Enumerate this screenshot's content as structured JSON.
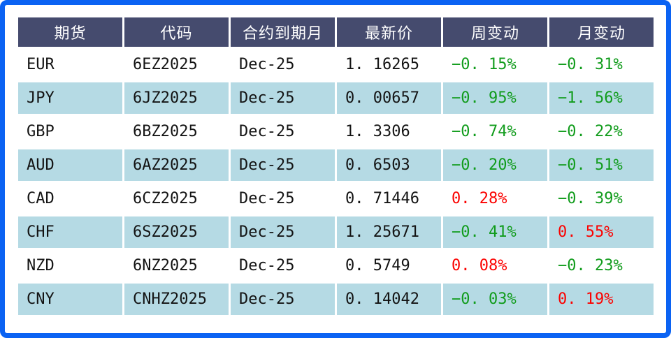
{
  "colors": {
    "frame_border": "#0b63f3",
    "header_bg": "#454b6e",
    "header_text": "#ffffff",
    "row_bg": "#ffffff",
    "row_alt_bg": "#b5dae4",
    "up_color": "#fb0200",
    "down_color": "#119c1c",
    "text_color": "#141414"
  },
  "table": {
    "columns": [
      "期货",
      "代码",
      "合约到期月",
      "最新价",
      "周变动",
      "月变动"
    ],
    "rows": [
      {
        "futures": "EUR",
        "code": "6EZ2025",
        "expiry": "Dec-25",
        "last": "1. 16265",
        "week_change": "−0. 15%",
        "week_dir": "down",
        "month_change": "−0. 31%",
        "month_dir": "down"
      },
      {
        "futures": "JPY",
        "code": "6JZ2025",
        "expiry": "Dec-25",
        "last": "0. 00657",
        "week_change": "−0. 95%",
        "week_dir": "down",
        "month_change": "−1. 56%",
        "month_dir": "down"
      },
      {
        "futures": "GBP",
        "code": "6BZ2025",
        "expiry": "Dec-25",
        "last": "1. 3306",
        "week_change": "−0. 74%",
        "week_dir": "down",
        "month_change": "−0. 22%",
        "month_dir": "down"
      },
      {
        "futures": "AUD",
        "code": "6AZ2025",
        "expiry": "Dec-25",
        "last": "0. 6503",
        "week_change": "−0. 20%",
        "week_dir": "down",
        "month_change": "−0. 51%",
        "month_dir": "down"
      },
      {
        "futures": "CAD",
        "code": "6CZ2025",
        "expiry": "Dec-25",
        "last": "0. 71446",
        "week_change": "0. 28%",
        "week_dir": "up",
        "month_change": "−0. 39%",
        "month_dir": "down"
      },
      {
        "futures": "CHF",
        "code": "6SZ2025",
        "expiry": "Dec-25",
        "last": "1. 25671",
        "week_change": "−0. 41%",
        "week_dir": "down",
        "month_change": "0. 55%",
        "month_dir": "up"
      },
      {
        "futures": "NZD",
        "code": "6NZ2025",
        "expiry": "Dec-25",
        "last": "0. 5749",
        "week_change": "0. 08%",
        "week_dir": "up",
        "month_change": "−0. 23%",
        "month_dir": "down"
      },
      {
        "futures": "CNY",
        "code": "CNHZ2025",
        "expiry": "Dec-25",
        "last": "0. 14042",
        "week_change": "−0. 03%",
        "week_dir": "down",
        "month_change": "0. 19%",
        "month_dir": "up"
      }
    ]
  },
  "chart_data": {
    "type": "table",
    "title": "",
    "columns": [
      "期货",
      "代码",
      "合约到期月",
      "最新价",
      "周变动(%)",
      "月变动(%)"
    ],
    "rows": [
      [
        "EUR",
        "6EZ2025",
        "Dec-25",
        1.16265,
        -0.15,
        -0.31
      ],
      [
        "JPY",
        "6JZ2025",
        "Dec-25",
        0.00657,
        -0.95,
        -1.56
      ],
      [
        "GBP",
        "6BZ2025",
        "Dec-25",
        1.3306,
        -0.74,
        -0.22
      ],
      [
        "AUD",
        "6AZ2025",
        "Dec-25",
        0.6503,
        -0.2,
        -0.51
      ],
      [
        "CAD",
        "6CZ2025",
        "Dec-25",
        0.71446,
        0.28,
        -0.39
      ],
      [
        "CHF",
        "6SZ2025",
        "Dec-25",
        1.25671,
        -0.41,
        0.55
      ],
      [
        "NZD",
        "6NZ2025",
        "Dec-25",
        0.5749,
        0.08,
        -0.23
      ],
      [
        "CNY",
        "CNHZ2025",
        "Dec-25",
        0.14042,
        -0.03,
        0.19
      ]
    ],
    "legend_note": "red = positive change, green = negative change",
    "layout": "header row dark, body rows alternate white / light blue"
  }
}
